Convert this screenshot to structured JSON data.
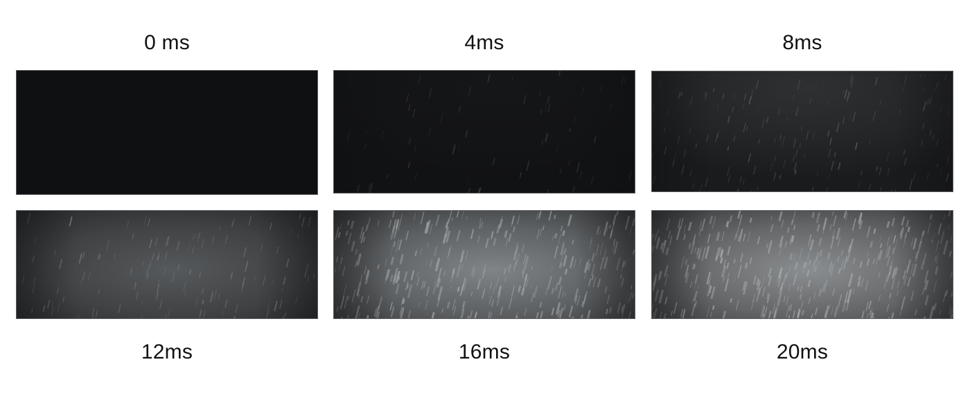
{
  "panels": [
    {
      "label": "0 ms",
      "brightness": 0.0,
      "streak_density": 0.0
    },
    {
      "label": "4ms",
      "brightness": 0.04,
      "streak_density": 0.15
    },
    {
      "label": "8ms",
      "brightness": 0.2,
      "streak_density": 0.35
    },
    {
      "label": "12ms",
      "brightness": 0.45,
      "streak_density": 0.3
    },
    {
      "label": "16ms",
      "brightness": 0.72,
      "streak_density": 0.8
    },
    {
      "label": "20ms",
      "brightness": 0.78,
      "streak_density": 0.9
    }
  ],
  "colors": {
    "background": "#ffffff",
    "text": "#111111",
    "dark": "#0f1012",
    "light": "#a6aaac"
  }
}
